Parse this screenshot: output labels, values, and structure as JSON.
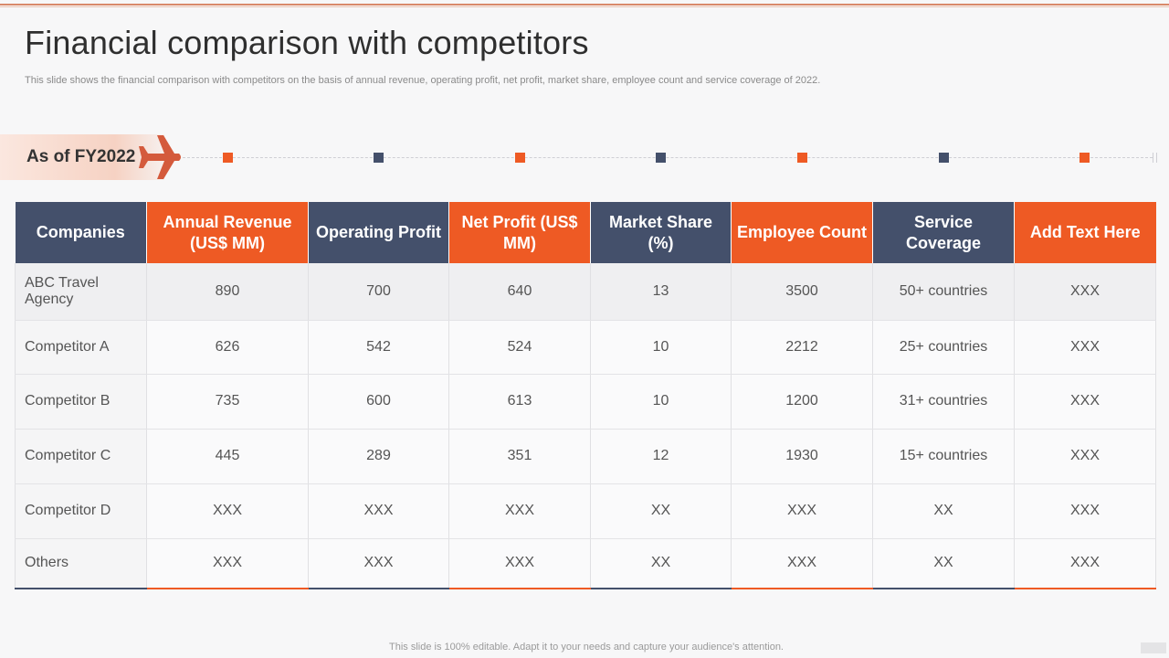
{
  "slide": {
    "title": "Financial comparison with competitors",
    "subtitle": "This slide shows the financial comparison with competitors on the basis of annual revenue, operating profit, net profit,  market share, employee count and service coverage of 2022.",
    "fy_label": "As of FY2022",
    "footer": "This slide is 100% editable. Adapt it to your needs and capture your audience's attention."
  },
  "colors": {
    "orange": "#ee5a24",
    "navy": "#44506b"
  },
  "table": {
    "headers": [
      "Companies",
      "Annual Revenue (US$ MM)",
      "Operating Profit",
      "Net Profit (US$ MM)",
      "Market Share (%)",
      "Employee Count",
      "Service Coverage",
      "Add Text Here"
    ],
    "rows": [
      [
        "ABC Travel Agency",
        "890",
        "700",
        "640",
        "13",
        "3500",
        "50+ countries",
        "XXX"
      ],
      [
        "Competitor A",
        "626",
        "542",
        "524",
        "10",
        "2212",
        "25+ countries",
        "XXX"
      ],
      [
        "Competitor B",
        "735",
        "600",
        "613",
        "10",
        "1200",
        "31+ countries",
        "XXX"
      ],
      [
        "Competitor C",
        "445",
        "289",
        "351",
        "12",
        "1930",
        "15+ countries",
        "XXX"
      ],
      [
        "Competitor D",
        "XXX",
        "XXX",
        "XXX",
        "XX",
        "XXX",
        "XX",
        "XXX"
      ],
      [
        "Others",
        "XXX",
        "XXX",
        "XXX",
        "XX",
        "XXX",
        "XX",
        "XXX"
      ]
    ]
  }
}
